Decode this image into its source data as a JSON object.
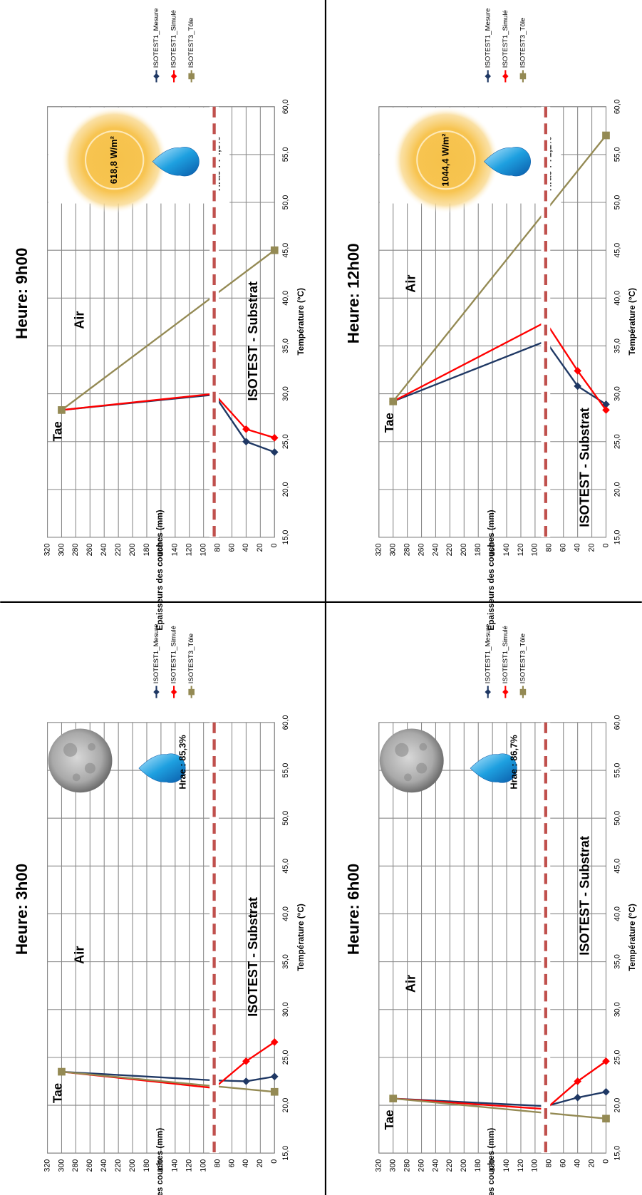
{
  "chart_data": [
    {
      "type": "line",
      "title": "Heure: 3h00",
      "x_label": "Température (°C)",
      "y_label": "Epaisseur des couches (mm)",
      "xlim": [
        15,
        60
      ],
      "xticks": [
        {
          "value": 15,
          "label": "15,0"
        },
        {
          "value": 20,
          "label": "20,0"
        },
        {
          "value": 25,
          "label": "25,0"
        },
        {
          "value": 30,
          "label": "30,0"
        },
        {
          "value": 35,
          "label": "35,0"
        },
        {
          "value": 40,
          "label": "40,0"
        },
        {
          "value": 45,
          "label": "45,0"
        },
        {
          "value": 50,
          "label": "50,0"
        },
        {
          "value": 55,
          "label": "55,0"
        },
        {
          "value": 60,
          "label": "60,0"
        }
      ],
      "ylim": [
        0,
        320
      ],
      "yticks": [
        0,
        20,
        40,
        60,
        80,
        100,
        120,
        140,
        160,
        180,
        200,
        220,
        240,
        260,
        280,
        300,
        320
      ],
      "grid": true,
      "reference_line": 85,
      "series": [
        {
          "name": "ISOTEST1_Mesure",
          "color": "#1f3864",
          "marker": "diamond",
          "x": [
            23.0,
            22.5,
            22.6,
            23.5
          ],
          "values": [
            0,
            40,
            85,
            300
          ]
        },
        {
          "name": "ISOTEST1_Simulé",
          "color": "#ff0000",
          "marker": "diamond",
          "x": [
            26.6,
            24.6,
            21.8,
            23.5
          ],
          "values": [
            0,
            40,
            85,
            300
          ]
        },
        {
          "name": "ISOTEST3_Tôle",
          "color": "#948a54",
          "marker": "square",
          "x": [
            21.4,
            23.5
          ],
          "values": [
            0,
            300
          ]
        }
      ],
      "annotations": {
        "tae": "Tae",
        "air": "Air",
        "substrate": "ISOTEST - Substrat",
        "humidity": "Hrae : 85,3%"
      }
    },
    {
      "type": "line",
      "title": "Heure: 6h00",
      "x_label": "Température (°C)",
      "y_label": "Epaisseur des couches (mm)",
      "xlim": [
        15,
        60
      ],
      "xticks": [
        {
          "value": 15,
          "label": "15,0"
        },
        {
          "value": 20,
          "label": "20,0"
        },
        {
          "value": 25,
          "label": "25,0"
        },
        {
          "value": 30,
          "label": "30,0"
        },
        {
          "value": 35,
          "label": "35,0"
        },
        {
          "value": 40,
          "label": "40,0"
        },
        {
          "value": 45,
          "label": "45,0"
        },
        {
          "value": 50,
          "label": "50,0"
        },
        {
          "value": 55,
          "label": "55,0"
        },
        {
          "value": 60,
          "label": "60,0"
        }
      ],
      "ylim": [
        0,
        320
      ],
      "yticks": [
        0,
        20,
        40,
        60,
        80,
        100,
        120,
        140,
        160,
        180,
        200,
        220,
        240,
        260,
        280,
        300,
        320
      ],
      "grid": true,
      "reference_line": 85,
      "series": [
        {
          "name": "ISOTEST1_Mesure",
          "color": "#1f3864",
          "marker": "diamond",
          "x": [
            21.4,
            20.8,
            19.9,
            20.7
          ],
          "values": [
            0,
            40,
            85,
            300
          ]
        },
        {
          "name": "ISOTEST1_Simulé",
          "color": "#ff0000",
          "marker": "diamond",
          "x": [
            24.6,
            22.5,
            19.6,
            20.7
          ],
          "values": [
            0,
            40,
            85,
            300
          ]
        },
        {
          "name": "ISOTEST3_Tôle",
          "color": "#948a54",
          "marker": "square",
          "x": [
            18.6,
            20.7
          ],
          "values": [
            0,
            300
          ]
        }
      ],
      "annotations": {
        "tae": "Tae",
        "air": "Air",
        "substrate": "ISOTEST - Substrat",
        "humidity": "Hrae : 86,7%"
      }
    },
    {
      "type": "line",
      "title": "Heure: 9h00",
      "x_label": "Température (°C)",
      "y_label": "Epaisseurs des couches (mm)",
      "xlim": [
        15,
        60
      ],
      "xticks": [
        {
          "value": 15,
          "label": "15,0"
        },
        {
          "value": 20,
          "label": "20,0"
        },
        {
          "value": 25,
          "label": "25,0"
        },
        {
          "value": 30,
          "label": "30,0"
        },
        {
          "value": 35,
          "label": "35,0"
        },
        {
          "value": 40,
          "label": "40,0"
        },
        {
          "value": 45,
          "label": "45,0"
        },
        {
          "value": 50,
          "label": "50,0"
        },
        {
          "value": 55,
          "label": "55,0"
        },
        {
          "value": 60,
          "label": "60,0"
        }
      ],
      "ylim": [
        0,
        320
      ],
      "yticks": [
        0,
        20,
        40,
        60,
        80,
        100,
        120,
        140,
        160,
        180,
        200,
        220,
        240,
        260,
        280,
        300,
        320
      ],
      "grid": true,
      "reference_line": 85,
      "series": [
        {
          "name": "ISOTEST1_Mesure",
          "color": "#1f3864",
          "marker": "diamond",
          "x": [
            23.9,
            25.0,
            29.9,
            28.3
          ],
          "values": [
            0,
            40,
            85,
            300
          ]
        },
        {
          "name": "ISOTEST1_Simulé",
          "color": "#ff0000",
          "marker": "diamond",
          "x": [
            25.4,
            26.3,
            30.0,
            28.3
          ],
          "values": [
            0,
            40,
            85,
            300
          ]
        },
        {
          "name": "ISOTEST3_Tôle",
          "color": "#948a54",
          "marker": "square",
          "x": [
            45.0,
            28.3
          ],
          "values": [
            0,
            300
          ]
        }
      ],
      "annotations": {
        "tae": "Tae",
        "air": "Air",
        "substrate": "ISOTEST - Substrat",
        "humidity": "Hrae : 74,8%",
        "irradiance": "618,8 W/m²"
      }
    },
    {
      "type": "line",
      "title": "Heure: 12h00",
      "x_label": "Température (°C)",
      "y_label": "Epaisseurs des couches (mm)",
      "xlim": [
        15,
        60
      ],
      "xticks": [
        {
          "value": 15,
          "label": "15,0"
        },
        {
          "value": 20,
          "label": "20,0"
        },
        {
          "value": 25,
          "label": "25,0"
        },
        {
          "value": 30,
          "label": "30,0"
        },
        {
          "value": 35,
          "label": "35,0"
        },
        {
          "value": 40,
          "label": "40,0"
        },
        {
          "value": 45,
          "label": "45,0"
        },
        {
          "value": 50,
          "label": "50,0"
        },
        {
          "value": 55,
          "label": "55,0"
        },
        {
          "value": 60,
          "label": "60,0"
        }
      ],
      "ylim": [
        0,
        320
      ],
      "yticks": [
        0,
        20,
        40,
        60,
        80,
        100,
        120,
        140,
        160,
        180,
        200,
        220,
        240,
        260,
        280,
        300,
        320
      ],
      "grid": true,
      "reference_line": 85,
      "series": [
        {
          "name": "ISOTEST1_Mesure",
          "color": "#1f3864",
          "marker": "diamond",
          "x": [
            28.9,
            30.8,
            35.5,
            29.2
          ],
          "values": [
            0,
            40,
            85,
            300
          ]
        },
        {
          "name": "ISOTEST1_Simulé",
          "color": "#ff0000",
          "marker": "diamond",
          "x": [
            28.3,
            32.4,
            37.5,
            29.2
          ],
          "values": [
            0,
            40,
            85,
            300
          ]
        },
        {
          "name": "ISOTEST3_Tôle",
          "color": "#948a54",
          "marker": "square",
          "x": [
            57.0,
            29.2
          ],
          "values": [
            0,
            300
          ]
        }
      ],
      "annotations": {
        "tae": "Tae",
        "air": "Air",
        "substrate": "ISOTEST - Substrat",
        "humidity": "Hrae : 71,1%",
        "irradiance": "1044,4 W/m²"
      }
    }
  ]
}
